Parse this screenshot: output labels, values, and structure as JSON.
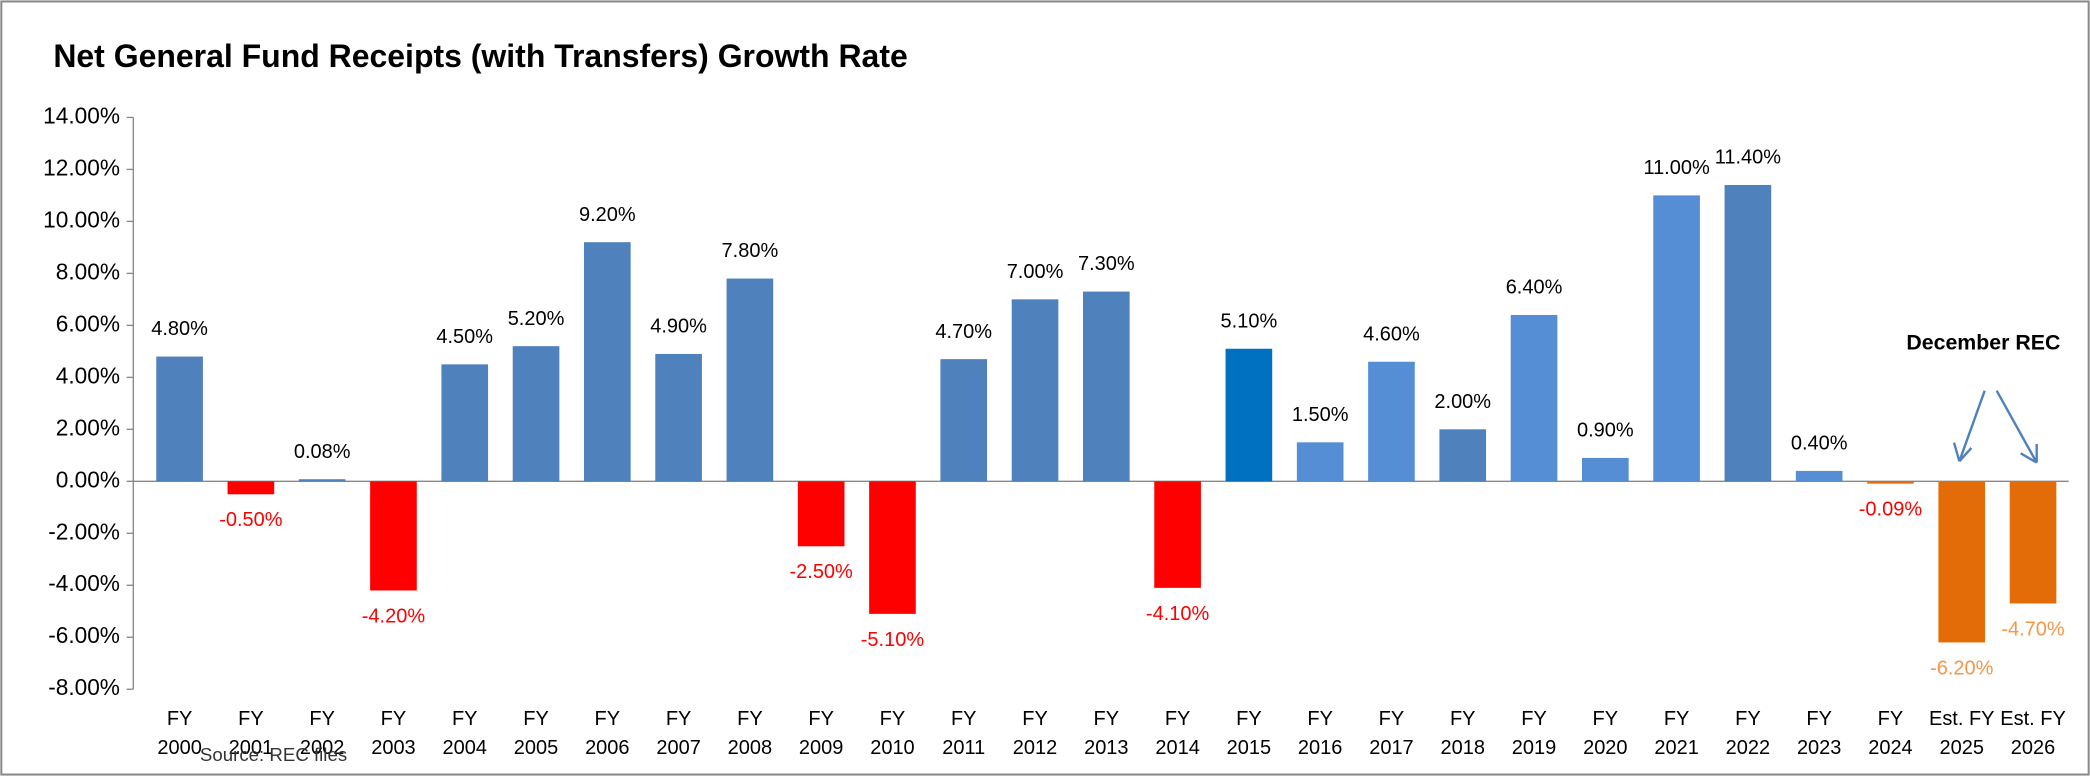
{
  "chart_data": {
    "type": "bar",
    "title": "Net General Fund Receipts (with Transfers) Growth Rate",
    "categories": [
      "FY 2000",
      "FY 2001",
      "FY 2002",
      "FY 2003",
      "FY 2004",
      "FY 2005",
      "FY 2006",
      "FY 2007",
      "FY 2008",
      "FY 2009",
      "FY 2010",
      "FY 2011",
      "FY 2012",
      "FY 2013",
      "FY 2014",
      "FY 2015",
      "FY 2016",
      "FY 2017",
      "FY 2018",
      "FY 2019",
      "FY 2020",
      "FY 2021",
      "FY 2022",
      "FY 2023",
      "FY 2024",
      "Est. FY 2025",
      "Est. FY 2026"
    ],
    "values": [
      4.8,
      -0.5,
      0.08,
      -4.2,
      4.5,
      5.2,
      9.2,
      4.9,
      7.8,
      -2.5,
      -5.1,
      4.7,
      7.0,
      7.3,
      -4.1,
      5.1,
      1.5,
      4.6,
      2.0,
      6.4,
      0.9,
      11.0,
      11.4,
      0.4,
      -0.09,
      -6.2,
      -4.7
    ],
    "value_labels": [
      "4.80%",
      "-0.50%",
      "0.08%",
      "-4.20%",
      "4.50%",
      "5.20%",
      "9.20%",
      "4.90%",
      "7.80%",
      "-2.50%",
      "-5.10%",
      "4.70%",
      "7.00%",
      "7.30%",
      "-4.10%",
      "5.10%",
      "1.50%",
      "4.60%",
      "2.00%",
      "6.40%",
      "0.90%",
      "11.00%",
      "11.40%",
      "0.40%",
      "-0.09%",
      "-6.20%",
      "-4.70%"
    ],
    "colors": [
      "#4f81bd",
      "#ff0000",
      "#4f81bd",
      "#ff0000",
      "#4f81bd",
      "#4f81bd",
      "#4f81bd",
      "#4f81bd",
      "#4f81bd",
      "#ff0000",
      "#ff0000",
      "#4f81bd",
      "#4f81bd",
      "#4f81bd",
      "#ff0000",
      "#0070c0",
      "#558ed5",
      "#558ed5",
      "#4f81bd",
      "#558ed5",
      "#558ed5",
      "#558ed5",
      "#4f81bd",
      "#558ed5",
      "#e36c09",
      "#e36c09",
      "#e36c09"
    ],
    "label_colors": [
      "#000",
      "#ff0000",
      "#000",
      "#ff0000",
      "#000",
      "#000",
      "#000",
      "#000",
      "#000",
      "#ff0000",
      "#ff0000",
      "#000",
      "#000",
      "#000",
      "#ff0000",
      "#000",
      "#000",
      "#000",
      "#000",
      "#000",
      "#000",
      "#000",
      "#000",
      "#000",
      "#ff0000",
      "#f79646",
      "#f79646"
    ],
    "ylim": [
      -8,
      14
    ],
    "yticks": [
      {
        "value": -8,
        "label": "-8.00%"
      },
      {
        "value": -6,
        "label": "-6.00%"
      },
      {
        "value": -4,
        "label": "-4.00%"
      },
      {
        "value": -2,
        "label": "-2.00%"
      },
      {
        "value": 0,
        "label": "0.00%"
      },
      {
        "value": 2,
        "label": "2.00%"
      },
      {
        "value": 4,
        "label": "4.00%"
      },
      {
        "value": 6,
        "label": "6.00%"
      },
      {
        "value": 8,
        "label": "8.00%"
      },
      {
        "value": 10,
        "label": "10.00%"
      },
      {
        "value": 12,
        "label": "12.00%"
      },
      {
        "value": 14,
        "label": "14.00%"
      }
    ],
    "annotation": "December REC",
    "source": "Source:  REC files"
  }
}
